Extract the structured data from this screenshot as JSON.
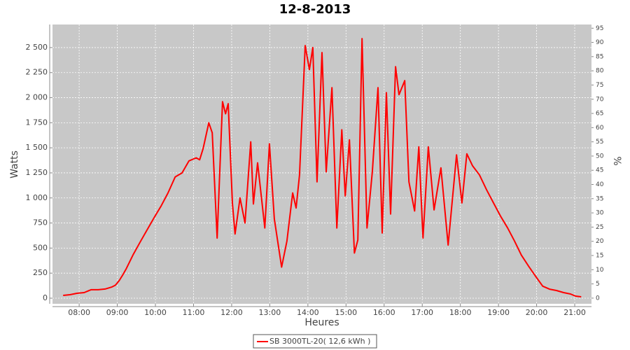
{
  "chart_data": {
    "type": "line",
    "title": "12-8-2013",
    "x_label": "Heures",
    "y_label": "Watts",
    "y2_label": "%",
    "x": [
      7.58,
      7.76,
      7.94,
      8.13,
      8.31,
      8.5,
      8.68,
      8.86,
      8.95,
      9.05,
      9.14,
      9.23,
      9.32,
      9.41,
      9.6,
      9.78,
      9.96,
      10.15,
      10.33,
      10.52,
      10.7,
      10.88,
      11.07,
      11.16,
      11.25,
      11.4,
      11.49,
      11.62,
      11.76,
      11.84,
      11.91,
      12.02,
      12.09,
      12.22,
      12.35,
      12.5,
      12.57,
      12.68,
      12.87,
      12.99,
      13.12,
      13.31,
      13.45,
      13.6,
      13.69,
      13.78,
      13.93,
      14.04,
      14.13,
      14.24,
      14.37,
      14.48,
      14.63,
      14.76,
      14.89,
      14.98,
      15.09,
      15.22,
      15.31,
      15.42,
      15.55,
      15.69,
      15.84,
      15.95,
      16.06,
      16.17,
      16.3,
      16.39,
      16.54,
      16.65,
      16.8,
      16.91,
      17.02,
      17.16,
      17.31,
      17.49,
      17.68,
      17.9,
      18.04,
      18.17,
      18.32,
      18.5,
      18.69,
      18.87,
      19.05,
      19.24,
      19.42,
      19.6,
      19.79,
      19.97,
      20.16,
      20.34,
      20.52,
      20.71,
      20.89,
      21.02,
      21.17
    ],
    "series": [
      {
        "name": "SB 3000TL-20( 12,6 kWh )",
        "color": "#ff0000",
        "values": [
          28,
          35,
          49,
          56,
          84,
          84,
          91,
          112,
          130,
          175,
          230,
          290,
          360,
          430,
          560,
          680,
          800,
          920,
          1050,
          1210,
          1250,
          1370,
          1400,
          1380,
          1490,
          1750,
          1650,
          600,
          1960,
          1840,
          1940,
          950,
          640,
          1000,
          750,
          1560,
          940,
          1350,
          700,
          1540,
          790,
          310,
          570,
          1050,
          900,
          1230,
          2520,
          2280,
          2500,
          1160,
          2450,
          1260,
          2100,
          700,
          1680,
          1020,
          1580,
          450,
          580,
          2590,
          700,
          1260,
          2100,
          650,
          2050,
          840,
          2310,
          2030,
          2170,
          1160,
          870,
          1510,
          600,
          1510,
          880,
          1300,
          530,
          1430,
          950,
          1440,
          1320,
          1230,
          1080,
          950,
          820,
          700,
          570,
          430,
          320,
          220,
          120,
          90,
          77,
          56,
          42,
          21,
          14
        ]
      }
    ],
    "xlim": [
      7.3,
      21.44
    ],
    "xticks": [
      {
        "value": 8,
        "label": "08:00"
      },
      {
        "value": 9,
        "label": "09:00"
      },
      {
        "value": 10,
        "label": "10:00"
      },
      {
        "value": 11,
        "label": "11:00"
      },
      {
        "value": 12,
        "label": "12:00"
      },
      {
        "value": 13,
        "label": "13:00"
      },
      {
        "value": 14,
        "label": "14:00"
      },
      {
        "value": 15,
        "label": "15:00"
      },
      {
        "value": 16,
        "label": "16:00"
      },
      {
        "value": 17,
        "label": "17:00"
      },
      {
        "value": 18,
        "label": "18:00"
      },
      {
        "value": 19,
        "label": "19:00"
      },
      {
        "value": 20,
        "label": "20:00"
      },
      {
        "value": 21,
        "label": "21:00"
      }
    ],
    "ylim": [
      -56,
      2730
    ],
    "yticks": [
      0,
      250,
      500,
      750,
      {
        "value": 1000,
        "label": "1 000"
      },
      {
        "value": 1250,
        "label": "1 250"
      },
      {
        "value": 1500,
        "label": "1 500"
      },
      {
        "value": 1750,
        "label": "1 750"
      },
      {
        "value": 2000,
        "label": "2 000"
      },
      {
        "value": 2250,
        "label": "2 250"
      },
      {
        "value": 2500,
        "label": "2 500"
      }
    ],
    "y2lim": [
      -2,
      96.3
    ],
    "y2ticks": [
      0,
      5,
      10,
      15,
      20,
      25,
      30,
      35,
      40,
      45,
      50,
      55,
      60,
      65,
      70,
      75,
      80,
      85,
      90,
      95
    ],
    "grid": true
  }
}
